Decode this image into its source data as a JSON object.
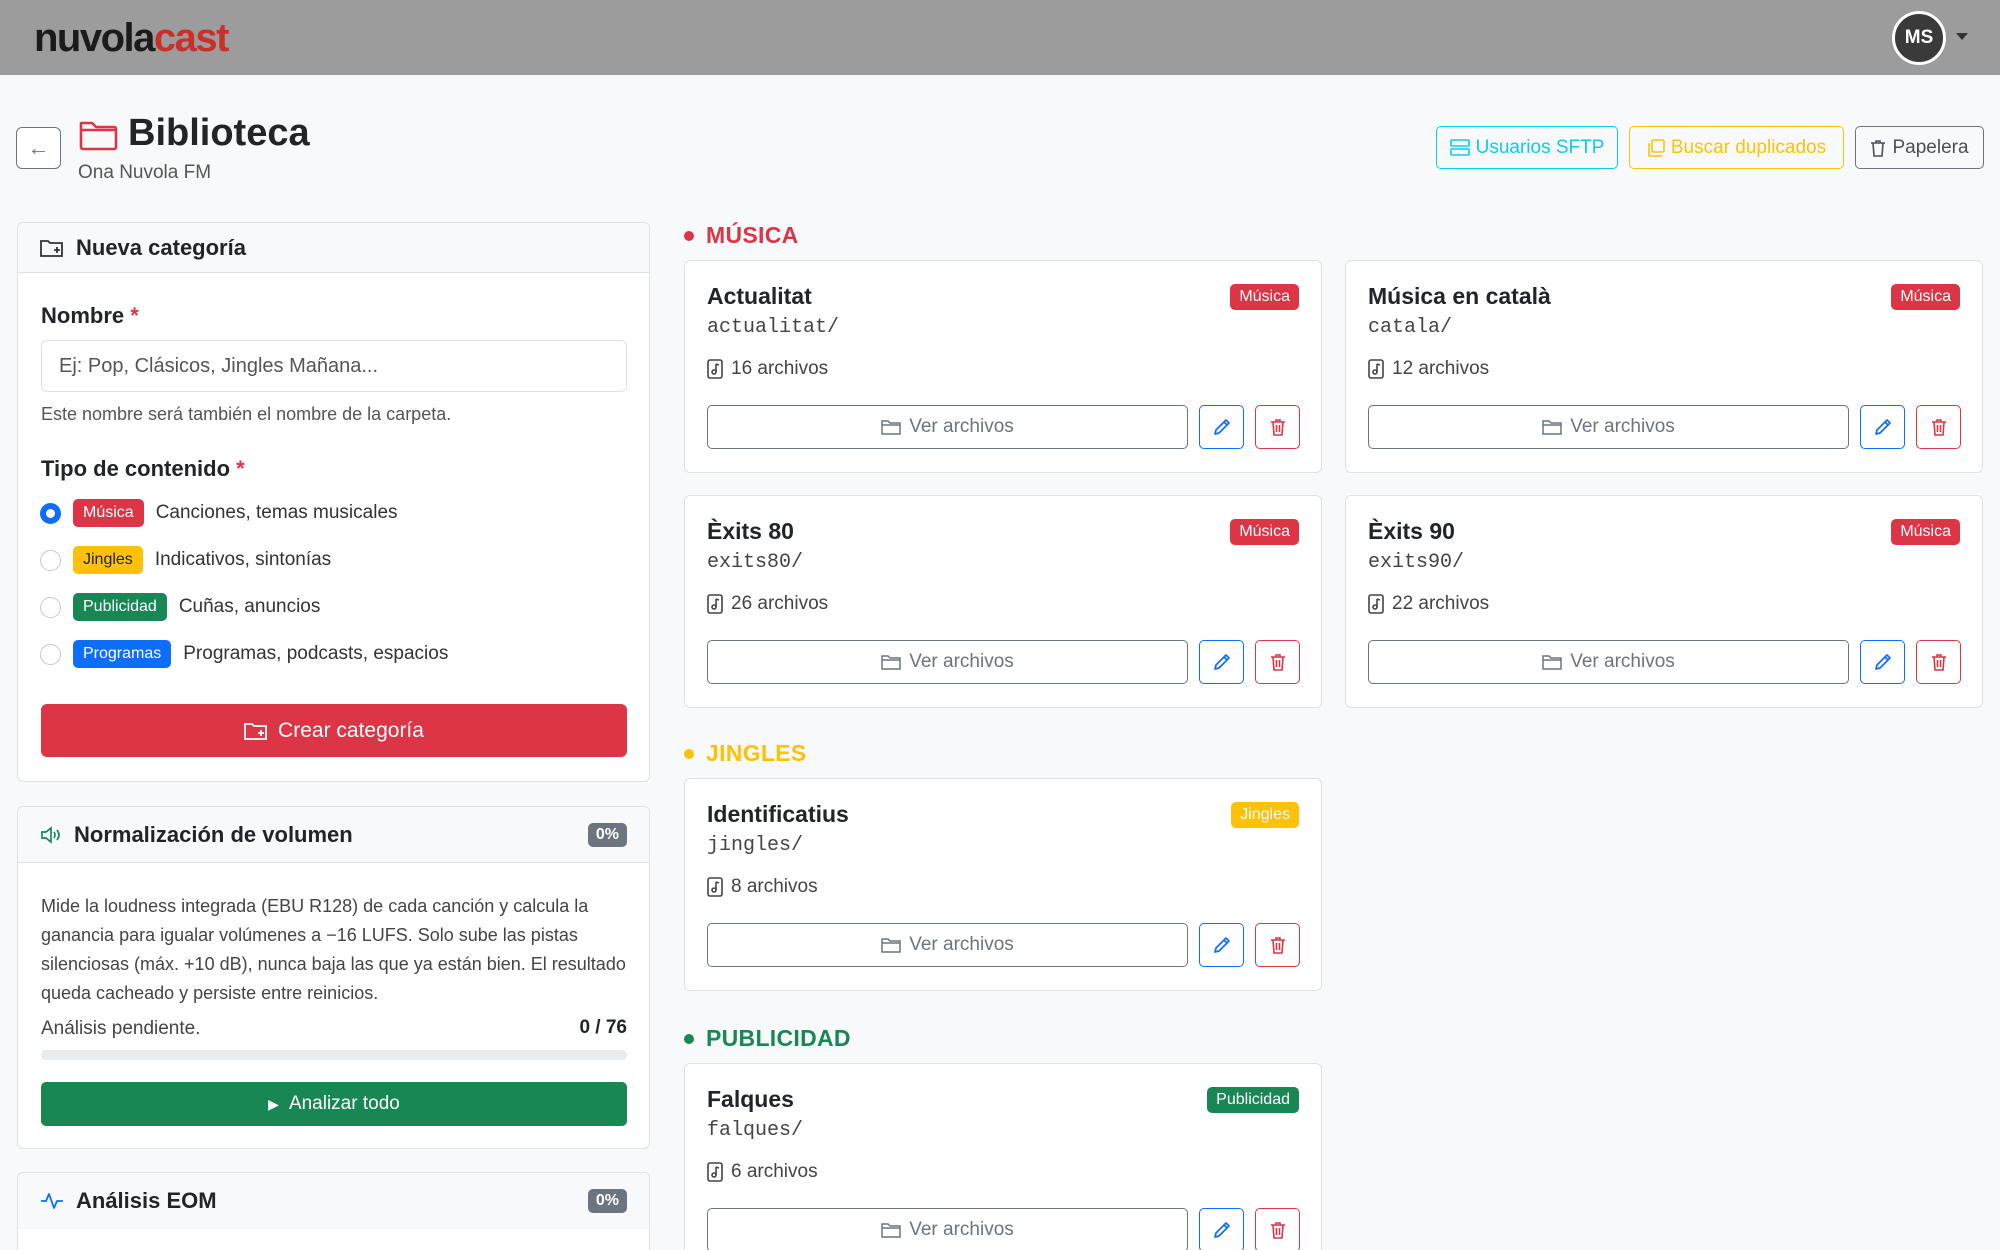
{
  "navbar": {
    "logo_part1": "nuvola",
    "logo_part2": "cast",
    "avatar_initials": "MS"
  },
  "header": {
    "title": "Biblioteca",
    "subtitle": "Ona Nuvola FM",
    "sftp_label": "Usuarios SFTP",
    "duplicates_label": "Buscar duplicados",
    "trash_label": "Papelera"
  },
  "new_category": {
    "header": "Nueva categoría",
    "name_label": "Nombre",
    "required_mark": "*",
    "name_placeholder": "Ej: Pop, Clásicos, Jingles Mañana...",
    "name_value": "",
    "name_help": "Este nombre será también el nombre de la carpeta.",
    "type_label": "Tipo de contenido",
    "types": [
      {
        "badge": "Música",
        "desc": "Canciones, temas musicales",
        "checked": true
      },
      {
        "badge": "Jingles",
        "desc": "Indicativos, sintonías",
        "checked": false
      },
      {
        "badge": "Publicidad",
        "desc": "Cuñas, anuncios",
        "checked": false
      },
      {
        "badge": "Programas",
        "desc": "Programas, podcasts, espacios",
        "checked": false
      }
    ],
    "create_label": "Crear categoría"
  },
  "normalization": {
    "header": "Normalización de volumen",
    "percent": "0%",
    "description": "Mide la loudness integrada (EBU R128) de cada canción y calcula la ganancia para igualar volúmenes a −16 LUFS. Solo sube las pistas silenciosas (máx. +10 dB), nunca baja las que ya están bien. El resultado queda cacheado y persiste entre reinicios.",
    "status": "Análisis pendiente.",
    "count": "0 / 76",
    "progress": 0,
    "analyze_label": "Analizar todo"
  },
  "eom": {
    "header": "Análisis EOM",
    "percent": "0%"
  },
  "sections": {
    "musica": {
      "title": "MÚSICA",
      "color": "#dc3545"
    },
    "jingles": {
      "title": "JINGLES",
      "color": "#ffc107"
    },
    "publicidad": {
      "title": "PUBLICIDAD",
      "color": "#198754"
    }
  },
  "categories": [
    {
      "name": "Actualitat",
      "badge": "Música",
      "path": "actualitat/",
      "files": "16 archivos",
      "view_label": "Ver archivos"
    },
    {
      "name": "Música en català",
      "badge": "Música",
      "path": "catala/",
      "files": "12 archivos",
      "view_label": "Ver archivos"
    },
    {
      "name": "Èxits 80",
      "badge": "Música",
      "path": "exits80/",
      "files": "26 archivos",
      "view_label": "Ver archivos"
    },
    {
      "name": "Èxits 90",
      "badge": "Música",
      "path": "exits90/",
      "files": "22 archivos",
      "view_label": "Ver archivos"
    },
    {
      "name": "Identificatius",
      "badge": "Jingles",
      "path": "jingles/",
      "files": "8 archivos",
      "view_label": "Ver archivos"
    },
    {
      "name": "Falques",
      "badge": "Publicidad",
      "path": "falques/",
      "files": "6 archivos",
      "view_label": "Ver archivos"
    }
  ]
}
